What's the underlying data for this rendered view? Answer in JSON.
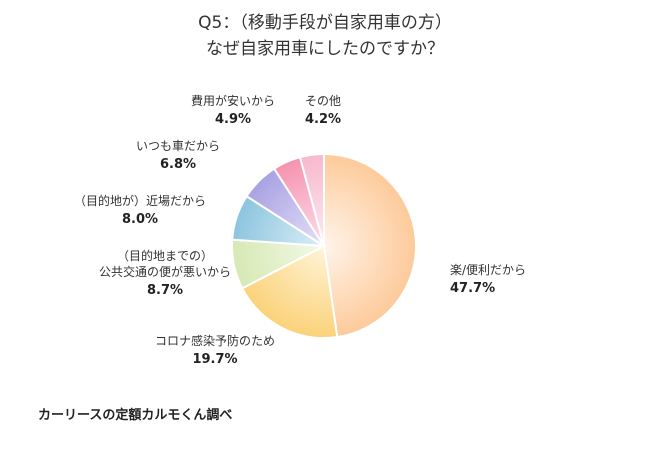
{
  "chart_data": {
    "type": "pie",
    "title_line1": "Q5：（移動手段が自家用車の方）",
    "title_line2": "なぜ自家用車にしたのですか？",
    "slices": [
      {
        "label_lines": [
          "楽/便利だから"
        ],
        "value": 47.7,
        "value_label": "47.7%",
        "color_outer": "#fdca9a",
        "color_inner": "#fff4ea"
      },
      {
        "label_lines": [
          "コロナ感染予防のため"
        ],
        "value": 19.7,
        "value_label": "19.7%",
        "color_outer": "#fbd27a",
        "color_inner": "#fff4d8"
      },
      {
        "label_lines": [
          "（目的地までの）",
          "公共交通の便が悪いから"
        ],
        "value": 8.7,
        "value_label": "8.7%",
        "color_outer": "#d6e9b4",
        "color_inner": "#f3f9e8"
      },
      {
        "label_lines": [
          "（目的地が）近場だから"
        ],
        "value": 8.0,
        "value_label": "8.0%",
        "color_outer": "#8cc5df",
        "color_inner": "#dceef7"
      },
      {
        "label_lines": [
          "いつも車だから"
        ],
        "value": 6.8,
        "value_label": "6.8%",
        "color_outer": "#a9a2e3",
        "color_inner": "#e4e0f7"
      },
      {
        "label_lines": [
          "費用が安いから"
        ],
        "value": 4.9,
        "value_label": "4.9%",
        "color_outer": "#f592b0",
        "color_inner": "#fde0e9"
      },
      {
        "label_lines": [
          "その他"
        ],
        "value": 4.2,
        "value_label": "4.2%",
        "color_outer": "#f7b8cd",
        "color_inner": "#fdeaf1"
      }
    ]
  },
  "source": "カーリースの定額カルモくん調べ"
}
